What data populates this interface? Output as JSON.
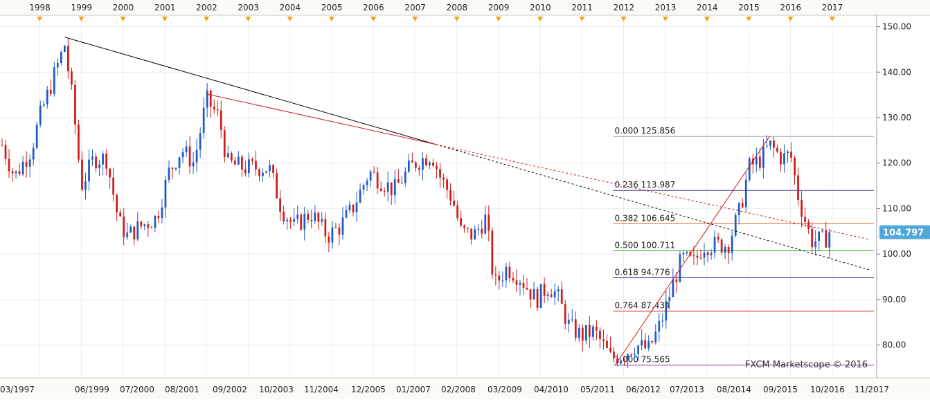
{
  "chart_data": {
    "type": "candlestick",
    "title": "",
    "xlabel": "",
    "ylabel": "",
    "ylim": [
      74,
      151
    ],
    "y_ticks": [
      80,
      90,
      100,
      110,
      120,
      130,
      140,
      150
    ],
    "y_tick_labels": [
      "80.00",
      "90.00",
      "100.00",
      "110.00",
      "120.00",
      "130.00",
      "140.00",
      "150.00"
    ],
    "top_axis_years": [
      "1998",
      "1999",
      "2000",
      "2001",
      "2002",
      "2003",
      "2004",
      "2005",
      "2006",
      "2007",
      "2008",
      "2009",
      "2010",
      "2011",
      "2012",
      "2013",
      "2014",
      "2015",
      "2016",
      "2017"
    ],
    "bottom_axis_labels": [
      "03/1997",
      "06/1999",
      "07/2000",
      "08/2001",
      "09/2002",
      "10/2003",
      "11/2004",
      "12/2005",
      "01/2007",
      "02/2008",
      "03/2009",
      "04/2010",
      "05/2011",
      "06/2012",
      "07/2013",
      "08/2014",
      "09/2015",
      "10/2016",
      "11/2017"
    ],
    "last_price": 104.797,
    "last_price_label": "104.797",
    "grid": true,
    "colors": {
      "up": "#1e5bc6",
      "down": "#d21b1b",
      "grid": "#e8e8e8",
      "price_tag": "#4fa8d8"
    },
    "fibonacci": [
      {
        "ratio": "0.000",
        "price": 125.856,
        "label": "0.000 125.856",
        "color": "#9aa0c4"
      },
      {
        "ratio": "0.236",
        "price": 113.987,
        "label": "0.236 113.987",
        "color": "#3a3a8c"
      },
      {
        "ratio": "0.382",
        "price": 106.645,
        "label": "0.382 106.645",
        "color": "#e2641c"
      },
      {
        "ratio": "0.500",
        "price": 100.711,
        "label": "0.500 100.711",
        "color": "#1fae1f"
      },
      {
        "ratio": "0.618",
        "price": 94.776,
        "label": "0.618 94.776",
        "color": "#1a1aa6"
      },
      {
        "ratio": "0.764",
        "price": 87.434,
        "label": "0.764 87.434",
        "color": "#d21b1b"
      },
      {
        "ratio": "1.000",
        "price": 75.565,
        "label": "1.000 75.565",
        "color": "#8a3aa6"
      }
    ],
    "trendlines": [
      {
        "from": [
          "1998.6",
          147.7
        ],
        "to": [
          "2007.5",
          124.1
        ],
        "color": "#000000",
        "style": "solid"
      },
      {
        "from": [
          "2007.5",
          124.1
        ],
        "to": [
          "2017.9",
          96.5
        ],
        "color": "#000000",
        "style": "dotted"
      },
      {
        "from": [
          "2002.0",
          135.2
        ],
        "to": [
          "2007.5",
          124.1
        ],
        "color": "#d21b1b",
        "style": "solid"
      },
      {
        "from": [
          "2007.5",
          124.1
        ],
        "to": [
          "2017.9",
          103.2
        ],
        "color": "#d21b1b",
        "style": "dotted"
      },
      {
        "from": [
          "2011.8",
          75.6
        ],
        "to": [
          "2015.5",
          125.9
        ],
        "color": "#d21b1b",
        "style": "solid"
      }
    ],
    "anchors": [
      {
        "t": 1997.1,
        "v": 124
      },
      {
        "t": 1997.4,
        "v": 117
      },
      {
        "t": 1997.8,
        "v": 123
      },
      {
        "t": 1998.0,
        "v": 130
      },
      {
        "t": 1998.3,
        "v": 138
      },
      {
        "t": 1998.6,
        "v": 146
      },
      {
        "t": 1998.8,
        "v": 133
      },
      {
        "t": 1999.0,
        "v": 115
      },
      {
        "t": 1999.3,
        "v": 121
      },
      {
        "t": 1999.6,
        "v": 121
      },
      {
        "t": 1999.9,
        "v": 107
      },
      {
        "t": 2000.1,
        "v": 104
      },
      {
        "t": 2000.4,
        "v": 106
      },
      {
        "t": 2000.8,
        "v": 108
      },
      {
        "t": 2001.1,
        "v": 118
      },
      {
        "t": 2001.4,
        "v": 123
      },
      {
        "t": 2001.7,
        "v": 120
      },
      {
        "t": 2002.0,
        "v": 134
      },
      {
        "t": 2002.3,
        "v": 130
      },
      {
        "t": 2002.5,
        "v": 120
      },
      {
        "t": 2002.9,
        "v": 119
      },
      {
        "t": 2003.2,
        "v": 119
      },
      {
        "t": 2003.5,
        "v": 119
      },
      {
        "t": 2003.8,
        "v": 110
      },
      {
        "t": 2004.1,
        "v": 106
      },
      {
        "t": 2004.5,
        "v": 109
      },
      {
        "t": 2004.9,
        "v": 104
      },
      {
        "t": 2005.2,
        "v": 106
      },
      {
        "t": 2005.5,
        "v": 110
      },
      {
        "t": 2005.9,
        "v": 118
      },
      {
        "t": 2006.2,
        "v": 116
      },
      {
        "t": 2006.5,
        "v": 114
      },
      {
        "t": 2006.8,
        "v": 118
      },
      {
        "t": 2007.0,
        "v": 120
      },
      {
        "t": 2007.4,
        "v": 122
      },
      {
        "t": 2007.6,
        "v": 117
      },
      {
        "t": 2007.9,
        "v": 112
      },
      {
        "t": 2008.1,
        "v": 105
      },
      {
        "t": 2008.4,
        "v": 104
      },
      {
        "t": 2008.7,
        "v": 108
      },
      {
        "t": 2008.9,
        "v": 93
      },
      {
        "t": 2009.2,
        "v": 97
      },
      {
        "t": 2009.5,
        "v": 95
      },
      {
        "t": 2009.9,
        "v": 90
      },
      {
        "t": 2010.2,
        "v": 93
      },
      {
        "t": 2010.4,
        "v": 91
      },
      {
        "t": 2010.7,
        "v": 84
      },
      {
        "t": 2011.0,
        "v": 82
      },
      {
        "t": 2011.3,
        "v": 83
      },
      {
        "t": 2011.7,
        "v": 77
      },
      {
        "t": 2012.0,
        "v": 78
      },
      {
        "t": 2012.3,
        "v": 80
      },
      {
        "t": 2012.6,
        "v": 79
      },
      {
        "t": 2012.9,
        "v": 85
      },
      {
        "t": 2013.2,
        "v": 94
      },
      {
        "t": 2013.4,
        "v": 99
      },
      {
        "t": 2013.7,
        "v": 98
      },
      {
        "t": 2013.9,
        "v": 102
      },
      {
        "t": 2014.2,
        "v": 102
      },
      {
        "t": 2014.5,
        "v": 102
      },
      {
        "t": 2014.8,
        "v": 110
      },
      {
        "t": 2015.0,
        "v": 119
      },
      {
        "t": 2015.3,
        "v": 121
      },
      {
        "t": 2015.5,
        "v": 124
      },
      {
        "t": 2015.8,
        "v": 121
      },
      {
        "t": 2016.0,
        "v": 122
      },
      {
        "t": 2016.2,
        "v": 112
      },
      {
        "t": 2016.5,
        "v": 103
      },
      {
        "t": 2016.8,
        "v": 103
      },
      {
        "t": 2016.95,
        "v": 104.8
      }
    ],
    "watermark": "FXCM Marketscope © 2016"
  }
}
